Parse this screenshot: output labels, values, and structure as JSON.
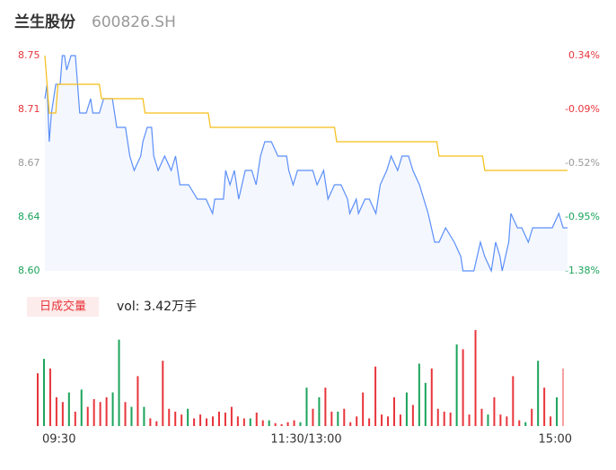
{
  "chart_data": {
    "type": "line",
    "title": "兰生股份",
    "subtitle": "600826.SH",
    "xlim": [
      0,
      240
    ],
    "xticks": [
      {
        "value": 0,
        "label": "09:30"
      },
      {
        "value": 120,
        "label": "11:30/13:00"
      },
      {
        "value": 240,
        "label": "15:00"
      }
    ],
    "ylim": [
      8.6,
      8.75
    ],
    "yticks": [
      8.75,
      {
        "value": 8.7125,
        "label": "8.71"
      },
      {
        "value": 8.675,
        "label": "8.67"
      },
      {
        "value": 8.6375,
        "label": "8.64"
      },
      {
        "value": 8.6,
        "label": "8.60"
      }
    ],
    "y2lim": [
      -1.38,
      0.34
    ],
    "y2ticks": [
      {
        "value": 0.34,
        "label": "0.34%"
      },
      {
        "value": -0.09,
        "label": "-0.09%"
      },
      {
        "value": -0.52,
        "label": "-0.52%"
      },
      {
        "value": -0.95,
        "label": "-0.95%"
      },
      {
        "value": -1.38,
        "label": "-1.38%"
      }
    ],
    "tick_colors": [
      "#e8353b",
      "#e8353b",
      "#999999",
      "#1ba35b",
      "#1ba35b"
    ],
    "series": [
      {
        "color": "#5b8ff9",
        "x": [
          0,
          1,
          2,
          3,
          5,
          7,
          8,
          9,
          10,
          12,
          14,
          15,
          16,
          19,
          21,
          22,
          25,
          27,
          31,
          33,
          37,
          39,
          41,
          44,
          45,
          47,
          49,
          50,
          52,
          55,
          58,
          60,
          62,
          66,
          70,
          74,
          77,
          78,
          82,
          83,
          85,
          87,
          89,
          92,
          95,
          97,
          99,
          101,
          104,
          107,
          111,
          112,
          114,
          116,
          120,
          123,
          125,
          128,
          130,
          133,
          136,
          139,
          140,
          143,
          144,
          147,
          149,
          152,
          154,
          157,
          159,
          162,
          164,
          167,
          169,
          172,
          174,
          176,
          179,
          181,
          184,
          188,
          191,
          192,
          197,
          200,
          202,
          205,
          207,
          209,
          210,
          213,
          214,
          217,
          219,
          222,
          224,
          228,
          233,
          236,
          238,
          240
        ],
        "values": [
          8.72,
          8.73,
          8.69,
          8.71,
          8.73,
          8.73,
          8.75,
          8.75,
          8.74,
          8.75,
          8.75,
          8.73,
          8.71,
          8.71,
          8.72,
          8.71,
          8.71,
          8.72,
          8.72,
          8.7,
          8.7,
          8.68,
          8.67,
          8.68,
          8.69,
          8.7,
          8.7,
          8.68,
          8.67,
          8.68,
          8.67,
          8.68,
          8.66,
          8.66,
          8.65,
          8.65,
          8.64,
          8.65,
          8.65,
          8.67,
          8.66,
          8.67,
          8.65,
          8.67,
          8.67,
          8.66,
          8.68,
          8.69,
          8.69,
          8.68,
          8.68,
          8.67,
          8.66,
          8.67,
          8.67,
          8.67,
          8.66,
          8.67,
          8.65,
          8.66,
          8.66,
          8.65,
          8.64,
          8.65,
          8.64,
          8.65,
          8.65,
          8.64,
          8.66,
          8.67,
          8.68,
          8.67,
          8.68,
          8.68,
          8.67,
          8.66,
          8.65,
          8.64,
          8.62,
          8.62,
          8.63,
          8.62,
          8.61,
          8.6,
          8.6,
          8.62,
          8.61,
          8.6,
          8.62,
          8.61,
          8.6,
          8.62,
          8.64,
          8.63,
          8.63,
          8.62,
          8.63,
          8.63,
          8.63,
          8.64,
          8.63,
          8.63
        ]
      },
      {
        "color": "#f6bd16",
        "x": [
          0,
          2,
          5,
          6,
          25,
          26,
          45,
          46,
          75,
          76,
          133,
          134,
          180,
          181,
          201,
          202,
          240
        ],
        "values": [
          8.75,
          8.71,
          8.71,
          8.73,
          8.73,
          8.72,
          8.72,
          8.71,
          8.71,
          8.7,
          8.7,
          8.69,
          8.69,
          8.68,
          8.68,
          8.67,
          8.67
        ]
      }
    ],
    "volume": {
      "label": "日成交量",
      "text": "vol: 3.42万手",
      "ylim": [
        0,
        100
      ],
      "values": [
        55,
        70,
        60,
        30,
        25,
        35,
        15,
        38,
        20,
        28,
        25,
        30,
        35,
        90,
        25,
        20,
        52,
        20,
        8,
        5,
        68,
        18,
        15,
        12,
        18,
        8,
        12,
        8,
        10,
        15,
        14,
        20,
        10,
        8,
        8,
        14,
        6,
        6,
        3,
        2,
        4,
        6,
        4,
        40,
        18,
        30,
        40,
        15,
        15,
        18,
        4,
        10,
        35,
        8,
        62,
        12,
        10,
        30,
        12,
        35,
        22,
        65,
        45,
        60,
        18,
        15,
        14,
        85,
        80,
        12,
        100,
        18,
        12,
        30,
        12,
        10,
        52,
        6,
        4,
        18,
        68,
        40,
        10,
        30,
        60
      ],
      "colors": [
        "#e8353b",
        "#1ba35b",
        "#e8353b",
        "#e8353b",
        "#e8353b",
        "#1ba35b",
        "#e8353b",
        "#1ba35b",
        "#e8353b",
        "#e8353b",
        "#e8353b",
        "#e8353b",
        "#1ba35b",
        "#1ba35b",
        "#e8353b",
        "#1ba35b",
        "#e8353b",
        "#1ba35b",
        "#e8353b",
        "#e8353b",
        "#e8353b",
        "#e8353b",
        "#e8353b",
        "#e8353b",
        "#1ba35b",
        "#e8353b",
        "#e8353b",
        "#e8353b",
        "#e8353b",
        "#e8353b",
        "#e8353b",
        "#e8353b",
        "#e8353b",
        "#e8353b",
        "#1ba35b",
        "#e8353b",
        "#e8353b",
        "#1ba35b",
        "#e8353b",
        "#e8353b",
        "#e8353b",
        "#e8353b",
        "#1ba35b",
        "#1ba35b",
        "#e8353b",
        "#1ba35b",
        "#e8353b",
        "#e8353b",
        "#1ba35b",
        "#e8353b",
        "#e8353b",
        "#e8353b",
        "#e8353b",
        "#e8353b",
        "#e8353b",
        "#e8353b",
        "#e8353b",
        "#e8353b",
        "#e8353b",
        "#1ba35b",
        "#e8353b",
        "#1ba35b",
        "#1ba35b",
        "#e8353b",
        "#e8353b",
        "#e8353b",
        "#e8353b",
        "#1ba35b",
        "#e8353b",
        "#e8353b",
        "#e8353b",
        "#e8353b",
        "#1ba35b",
        "#e8353b",
        "#e8353b",
        "#e8353b",
        "#e8353b",
        "#e8353b",
        "#1ba35b",
        "#e8353b",
        "#1ba35b",
        "#e8353b",
        "#e8353b",
        "#1ba35b",
        "#f4a0a3"
      ]
    }
  }
}
